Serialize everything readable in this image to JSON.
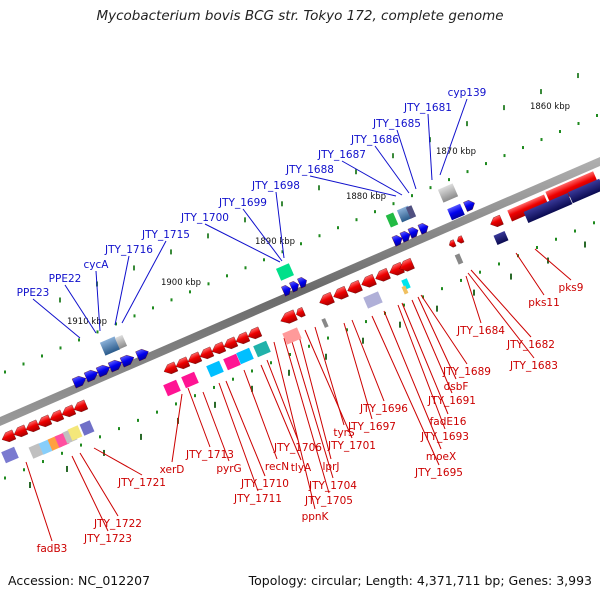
{
  "title": "Mycobacterium bovis BCG str. Tokyo 172, complete genome",
  "accession": "Accession: NC_012207",
  "topology": "Topology: circular; Length: 4,371,711 bp; Genes: 3,993",
  "colors": {
    "forward_label": "#1010cc",
    "reverse_label": "#cc0000",
    "backbone": "#808080"
  },
  "tick_labels": [
    "1860 kbp",
    "1870 kbp",
    "1880 kbp",
    "1890 kbp",
    "1900 kbp",
    "1910 kbp"
  ],
  "forward_genes": [
    "cyp139",
    "JTY_1681",
    "JTY_1685",
    "JTY_1686",
    "JTY_1687",
    "JTY_1688",
    "JTY_1698",
    "JTY_1699",
    "JTY_1700",
    "JTY_1715",
    "JTY_1716",
    "cycA",
    "PPE22",
    "PPE23"
  ],
  "reverse_genes": [
    "pks9",
    "pks11",
    "JTY_1682",
    "JTY_1683",
    "JTY_1684",
    "JTY_1689",
    "dsbF",
    "JTY_1691",
    "fadE16",
    "JTY_1693",
    "moeX",
    "JTY_1695",
    "JTY_1696",
    "JTY_1697",
    "tyrS",
    "JTY_1701",
    "lprJ",
    "JTY_1704",
    "JTY_1705",
    "ppnK",
    "JTY_1706",
    "tlyA",
    "recN",
    "JTY_1710",
    "JTY_1711",
    "JTY_1713",
    "pyrG",
    "xerD",
    "JTY_1721",
    "JTY_1722",
    "JTY_1723",
    "fadB3"
  ]
}
